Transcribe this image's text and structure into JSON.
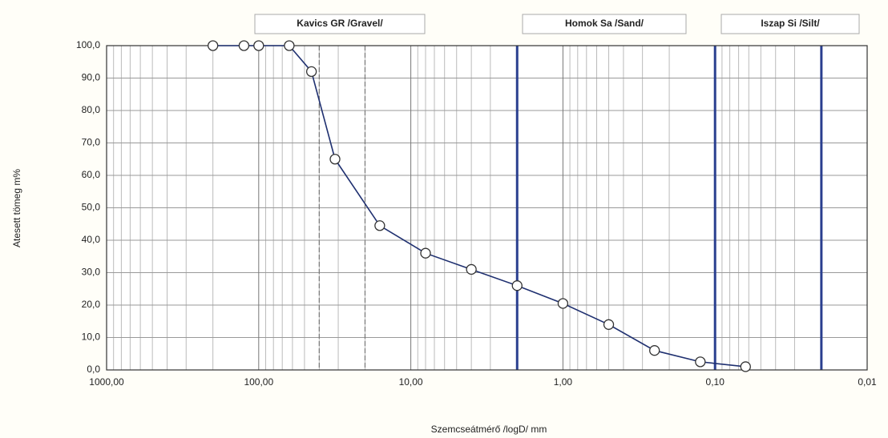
{
  "chart_data": {
    "type": "line",
    "xlabel": "Szemcseátmérő /logD/ mm",
    "ylabel": "Atesett tömeg m%",
    "zones": [
      "Kavics GR /Gravel/",
      "Homok Sa /Sand/",
      "Iszap Si /Silt/"
    ],
    "xscale": "log",
    "grid": true,
    "xlim": [
      1000,
      0.01
    ],
    "ylim": [
      0,
      100
    ],
    "xticks": [
      {
        "value": 1000,
        "label": "1000,00"
      },
      {
        "value": 100,
        "label": "100,00"
      },
      {
        "value": 10,
        "label": "10,00"
      },
      {
        "value": 1,
        "label": "1,00"
      },
      {
        "value": 0.1,
        "label": "0,10"
      },
      {
        "value": 0.01,
        "label": "0,01"
      }
    ],
    "yticks": [
      {
        "value": 0,
        "label": "0,0"
      },
      {
        "value": 10,
        "label": "10,0"
      },
      {
        "value": 20,
        "label": "20,0"
      },
      {
        "value": 30,
        "label": "30,0"
      },
      {
        "value": 40,
        "label": "40,0"
      },
      {
        "value": 50,
        "label": "50,0"
      },
      {
        "value": 60,
        "label": "60,0"
      },
      {
        "value": 70,
        "label": "70,0"
      },
      {
        "value": 80,
        "label": "80,0"
      },
      {
        "value": 90,
        "label": "90,0"
      },
      {
        "value": 100,
        "label": "100,0"
      }
    ],
    "vlines": [
      {
        "x": 40,
        "style": "dashed",
        "color": "#777"
      },
      {
        "x": 20,
        "style": "dashed",
        "color": "#777"
      },
      {
        "x": 2,
        "style": "solid",
        "color": "#2a3f8f"
      },
      {
        "x": 0.1,
        "style": "solid",
        "color": "#2a3f8f"
      },
      {
        "x": 0.02,
        "style": "solid",
        "color": "#2a3f8f"
      }
    ],
    "series": [
      {
        "color": "#1f3070",
        "x": [
          200,
          125,
          100,
          63,
          45,
          31.5,
          16,
          8,
          4,
          2,
          1,
          0.5,
          0.25,
          0.125,
          0.063
        ],
        "values": [
          100,
          100,
          100,
          100,
          92,
          65,
          44.5,
          36,
          31,
          26,
          20.5,
          14,
          6,
          2.5,
          1
        ]
      }
    ]
  }
}
